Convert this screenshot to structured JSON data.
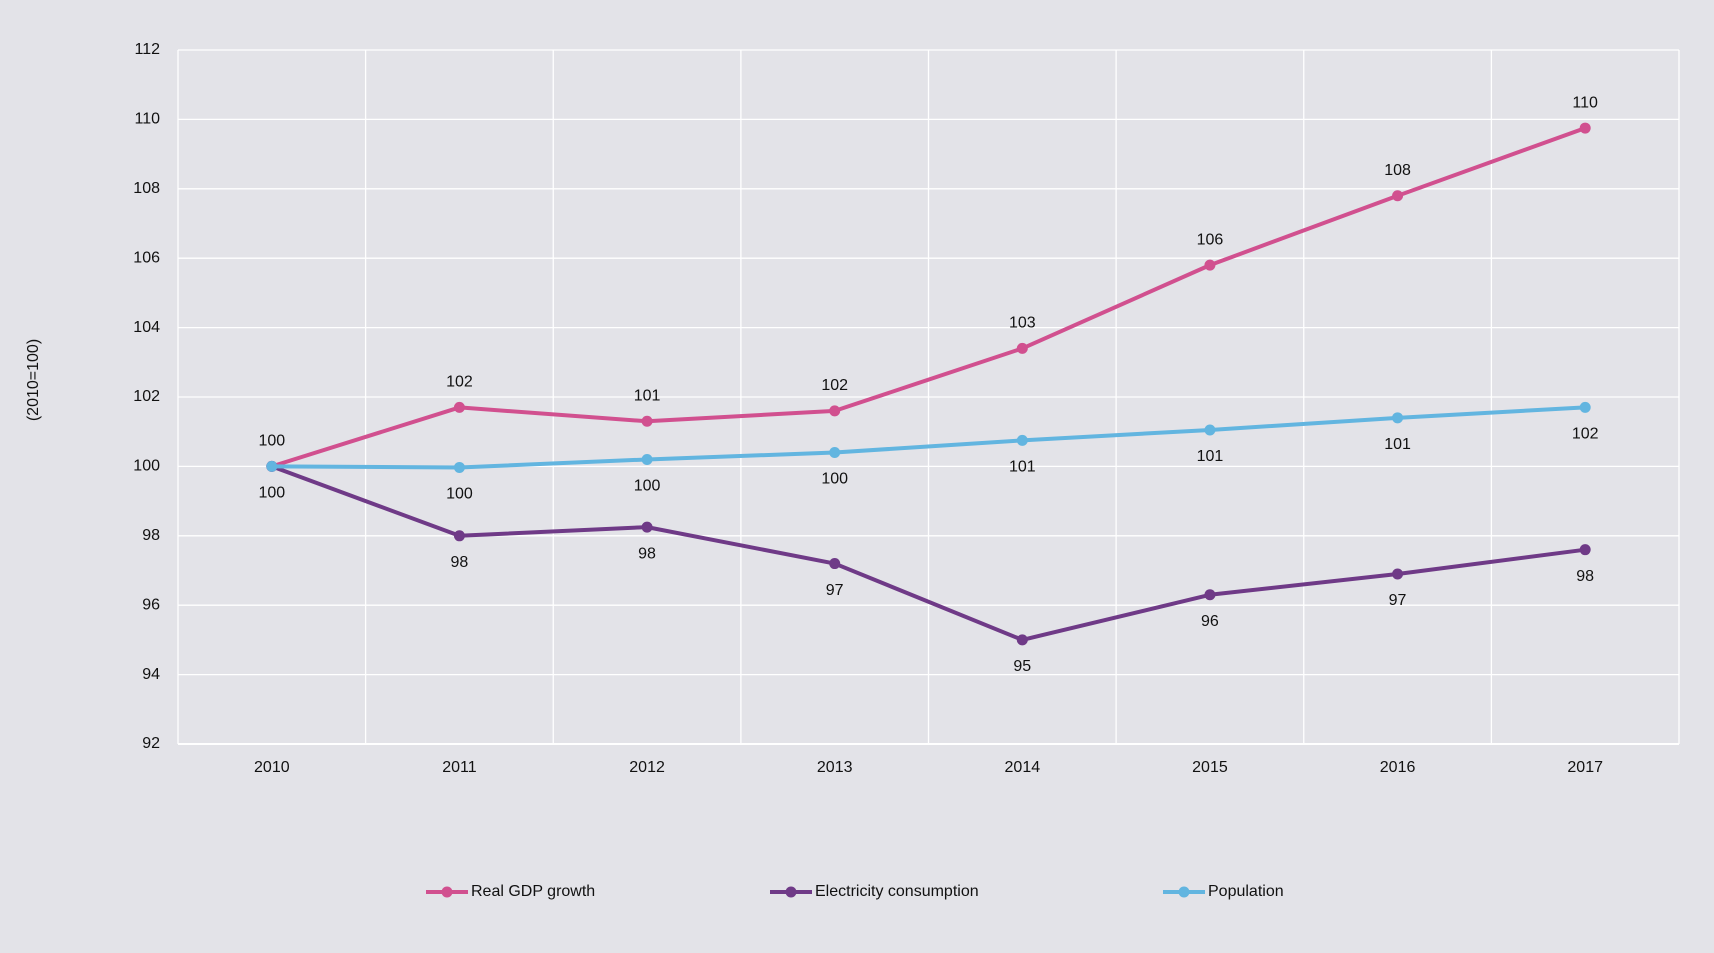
{
  "chart_data": {
    "type": "line",
    "y_label": "(2010=100)",
    "categories": [
      "2010",
      "2011",
      "2012",
      "2013",
      "2014",
      "2015",
      "2016",
      "2017"
    ],
    "series": [
      {
        "name": "Real GDP growth",
        "color": "#d1508f",
        "label_position": "above",
        "values": [
          100,
          101.7,
          101.3,
          101.6,
          103.4,
          105.8,
          107.8,
          109.75
        ],
        "value_labels": [
          "100",
          "102",
          "101",
          "102",
          "103",
          "106",
          "108",
          "110"
        ]
      },
      {
        "name": "Electricity consumption",
        "color": "#6f3a87",
        "label_position": "below",
        "values": [
          100,
          98.0,
          98.25,
          97.2,
          95.0,
          96.3,
          96.9,
          97.6
        ],
        "value_labels": [
          "100",
          "98",
          "98",
          "97",
          "95",
          "96",
          "97",
          "98"
        ]
      },
      {
        "name": "Population",
        "color": "#62b5e0",
        "label_position": "below",
        "values": [
          100,
          99.97,
          100.2,
          100.4,
          100.75,
          101.05,
          101.4,
          101.7
        ],
        "value_labels": [
          null,
          "100",
          "100",
          "100",
          "101",
          "101",
          "101",
          "102"
        ]
      }
    ],
    "ylim": [
      92,
      112
    ],
    "yticks": [
      92,
      94,
      96,
      98,
      100,
      102,
      104,
      106,
      108,
      110,
      112
    ],
    "grid": true,
    "legend": "bottom"
  }
}
